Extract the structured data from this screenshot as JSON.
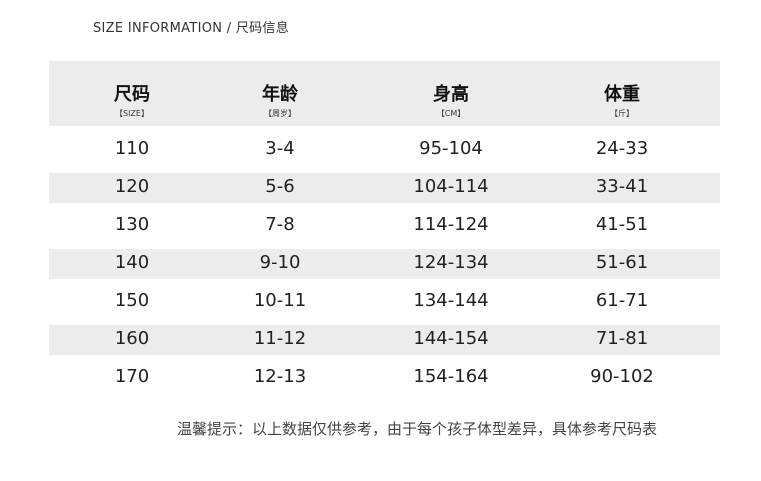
{
  "title": "SIZE INFORMATION / 尺码信息",
  "headers": [
    {
      "label": "尺码",
      "sub": "【SIZE】"
    },
    {
      "label": "年龄",
      "sub": "【周岁】"
    },
    {
      "label": "身高",
      "sub": "【CM】"
    },
    {
      "label": "体重",
      "sub": "【斤】"
    }
  ],
  "rows": [
    [
      "110",
      "3-4",
      "95-104",
      "24-33"
    ],
    [
      "120",
      "5-6",
      "104-114",
      "33-41"
    ],
    [
      "130",
      "7-8",
      "114-124",
      "41-51"
    ],
    [
      "140",
      "9-10",
      "124-134",
      "51-61"
    ],
    [
      "150",
      "10-11",
      "134-144",
      "61-71"
    ],
    [
      "160",
      "11-12",
      "144-154",
      "71-81"
    ],
    [
      "170",
      "12-13",
      "154-164",
      "90-102"
    ]
  ],
  "note": "温馨提示：以上数据仅供参考，由于每个孩子体型差异，具体参考尺码表",
  "colors": {
    "stripe": "#ececec",
    "text": "#222222"
  }
}
